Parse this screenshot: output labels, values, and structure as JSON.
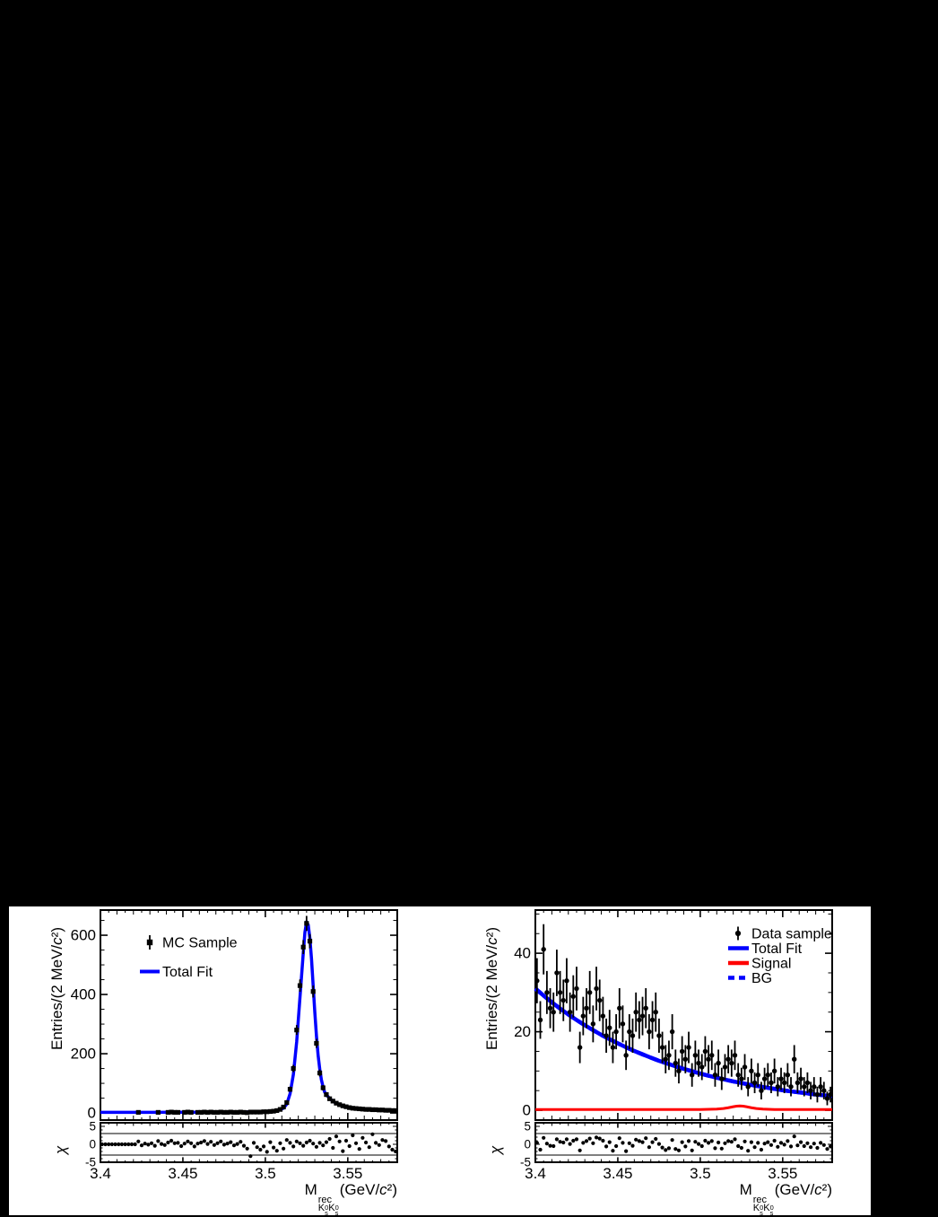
{
  "page": {
    "background": "#000000",
    "canvas_background": "#ffffff"
  },
  "colors": {
    "data_black": "#000000",
    "fit_blue": "#0000ff",
    "signal_red": "#ff0000",
    "frame": "#000000",
    "text": "#000000"
  },
  "chart_data": [
    {
      "id": "mc_sample_fit",
      "type": "histogram_with_fit",
      "ylabel": {
        "pre": "Entries/(2 MeV/",
        "c": "c",
        "post": "²)"
      },
      "xlabel": {
        "m": "M",
        "sup": "rec",
        "k": "K",
        "zero": "0",
        "s": "s",
        "paren": "(GeV/",
        "c": "c",
        "close": "²)"
      },
      "pull_ylabel": "χ",
      "marker": "square",
      "xrange": [
        3.4,
        3.58
      ],
      "yrange": [
        -24,
        685
      ],
      "pull_range": [
        -5,
        6
      ],
      "ytick_major": 200,
      "ytick_minor": 50,
      "xticks": [
        {
          "v": 3.4,
          "label": "3.4"
        },
        {
          "v": 3.45,
          "label": "3.45"
        },
        {
          "v": 3.5,
          "label": "3.5"
        },
        {
          "v": 3.55,
          "label": "3.55"
        }
      ],
      "yticks": [
        {
          "v": 0,
          "label": "0"
        },
        {
          "v": 200,
          "label": "200"
        },
        {
          "v": 400,
          "label": "400"
        },
        {
          "v": 600,
          "label": "600"
        }
      ],
      "pull_ticks": [
        {
          "v": 5,
          "label": "5"
        },
        {
          "v": 0,
          "label": "0"
        },
        {
          "v": -5,
          "label": "-5"
        }
      ],
      "pull_ref_lines": [
        3,
        -3
      ],
      "legend": [
        {
          "label": "MC Sample",
          "swatch": "square-marker-with-errorbar",
          "color_key": "data_black"
        },
        {
          "label": "Total Fit",
          "swatch": "solid-line",
          "color_key": "fit_blue"
        }
      ],
      "bins": {
        "start": 3.401,
        "step": 0.002,
        "values": [
          0,
          0,
          0,
          0,
          0,
          0,
          0,
          0,
          0,
          0,
          0,
          2,
          0,
          0,
          0,
          0,
          0,
          2,
          0,
          0,
          2,
          3,
          2,
          2,
          0,
          2,
          3,
          2,
          0,
          2,
          2,
          3,
          2,
          3,
          2,
          2,
          3,
          2,
          2,
          3,
          2,
          2,
          3,
          2,
          1,
          3,
          3,
          3,
          3,
          4,
          4,
          5,
          6,
          8,
          12,
          20,
          35,
          80,
          150,
          280,
          430,
          560,
          640,
          580,
          410,
          235,
          135,
          85,
          62,
          48,
          40,
          33,
          28,
          24,
          21,
          18,
          16,
          15,
          14,
          13,
          12,
          12,
          11,
          11,
          10,
          10,
          9,
          9,
          8,
          8
        ]
      },
      "curves": [
        {
          "name": "total_fit",
          "legend": "Total Fit",
          "color_key": "fit_blue",
          "style": "solid",
          "width": 3.5,
          "points": [
            [
              3.4,
              2
            ],
            [
              3.43,
              2.2
            ],
            [
              3.45,
              2.4
            ],
            [
              3.47,
              2.7
            ],
            [
              3.485,
              3.2
            ],
            [
              3.495,
              4
            ],
            [
              3.5,
              5
            ],
            [
              3.504,
              6.5
            ],
            [
              3.508,
              9
            ],
            [
              3.511,
              16
            ],
            [
              3.513,
              30
            ],
            [
              3.515,
              65
            ],
            [
              3.517,
              130
            ],
            [
              3.519,
              240
            ],
            [
              3.521,
              390
            ],
            [
              3.523,
              540
            ],
            [
              3.524,
              610
            ],
            [
              3.525,
              645
            ],
            [
              3.526,
              635
            ],
            [
              3.527,
              590
            ],
            [
              3.528,
              520
            ],
            [
              3.529,
              430
            ],
            [
              3.53,
              340
            ],
            [
              3.531,
              260
            ],
            [
              3.532,
              195
            ],
            [
              3.533,
              148
            ],
            [
              3.534,
              112
            ],
            [
              3.535,
              88
            ],
            [
              3.536,
              70
            ],
            [
              3.538,
              55
            ],
            [
              3.54,
              44
            ],
            [
              3.542,
              36
            ],
            [
              3.545,
              28
            ],
            [
              3.548,
              23
            ],
            [
              3.551,
              19
            ],
            [
              3.555,
              16
            ],
            [
              3.56,
              13
            ],
            [
              3.565,
              12
            ],
            [
              3.57,
              11
            ],
            [
              3.575,
              10
            ],
            [
              3.58,
              9
            ]
          ]
        }
      ],
      "pulls": [
        0,
        0,
        0,
        0,
        0,
        0,
        0,
        0,
        0,
        0,
        0,
        0.8,
        -0.3,
        0.2,
        -0.1,
        0.3,
        -0.4,
        0.9,
        0.1,
        -0.2,
        0.5,
        1.0,
        0.3,
        0.4,
        -0.5,
        0.2,
        0.8,
        0.3,
        -0.6,
        0.2,
        0.5,
        0.9,
        0.1,
        0.7,
        -0.2,
        0.3,
        0.8,
        -0.1,
        0.2,
        0.6,
        -0.3,
        0.1,
        0.7,
        -0.4,
        -1.2,
        -3.3,
        0.4,
        -0.8,
        -1.5,
        -0.6,
        -2.1,
        0.6,
        -0.9,
        -1.8,
        0.3,
        -1.2,
        1.2,
        0.4,
        -0.6,
        0.8,
        0.3,
        -0.4,
        0.5,
        1.0,
        0.2,
        -0.7,
        0.4,
        -0.3,
        0.6,
        1.5,
        -1.0,
        2.2,
        0.8,
        -1.9,
        1.0,
        -0.5,
        2.5,
        0.3,
        -1.3,
        1.8,
        0.5,
        -0.8,
        2.8,
        0.4,
        -0.2,
        1.2,
        0.9,
        -0.6,
        -1.5,
        -2.0
      ]
    },
    {
      "id": "data_sample_fit",
      "type": "histogram_with_fit",
      "ylabel": {
        "pre": "Entries/(2 MeV/",
        "c": "c",
        "post": "²)"
      },
      "xlabel": {
        "m": "M",
        "sup": "rec",
        "k": "K",
        "zero": "0",
        "s": "s",
        "paren": "(GeV/",
        "c": "c",
        "close": "²)"
      },
      "pull_ylabel": "χ",
      "marker": "circle",
      "xrange": [
        3.4,
        3.58
      ],
      "yrange": [
        -2.5,
        51
      ],
      "pull_range": [
        -5,
        6
      ],
      "ytick_major": 20,
      "ytick_minor": 5,
      "xticks": [
        {
          "v": 3.4,
          "label": "3.4"
        },
        {
          "v": 3.45,
          "label": "3.45"
        },
        {
          "v": 3.5,
          "label": "3.5"
        },
        {
          "v": 3.55,
          "label": "3.55"
        }
      ],
      "yticks": [
        {
          "v": 0,
          "label": "0"
        },
        {
          "v": 20,
          "label": "20"
        },
        {
          "v": 40,
          "label": "40"
        }
      ],
      "pull_ticks": [
        {
          "v": 5,
          "label": "5"
        },
        {
          "v": 0,
          "label": "0"
        },
        {
          "v": -5,
          "label": "-5"
        }
      ],
      "pull_ref_lines": [
        3,
        -3
      ],
      "legend": [
        {
          "label": "Data sample",
          "swatch": "circle-marker-with-errorbar",
          "color_key": "data_black"
        },
        {
          "label": "Total Fit",
          "swatch": "solid-line",
          "color_key": "fit_blue"
        },
        {
          "label": "Signal",
          "swatch": "solid-line",
          "color_key": "signal_red"
        },
        {
          "label": "BG",
          "swatch": "dashed-line",
          "color_key": "fit_blue"
        }
      ],
      "bins": {
        "start": 3.401,
        "step": 0.002,
        "values": [
          33,
          23,
          41,
          30,
          26,
          25,
          35,
          30,
          28,
          33,
          25,
          29,
          31,
          16,
          24,
          26,
          30,
          22,
          31,
          28,
          24,
          19,
          21,
          16,
          20,
          26,
          22,
          14,
          20,
          19,
          25,
          23,
          24,
          26,
          20,
          23,
          25,
          19,
          16,
          13,
          14,
          20,
          12,
          10,
          15,
          13,
          16,
          9,
          14,
          12,
          11,
          15,
          13,
          14,
          9,
          12,
          8,
          11,
          13,
          12,
          14,
          9,
          8,
          11,
          6,
          10,
          7,
          9,
          5,
          8,
          9,
          7,
          10,
          6,
          8,
          7,
          9,
          6,
          13,
          7,
          8,
          6,
          7,
          5,
          6,
          4,
          6,
          5,
          3,
          4
        ]
      },
      "curves": [
        {
          "name": "bg",
          "legend": "BG",
          "color_key": "fit_blue",
          "style": "dashed",
          "width": 4.5,
          "points": "=total_fit"
        },
        {
          "name": "total_fit",
          "legend": "Total Fit",
          "color_key": "fit_blue",
          "style": "solid",
          "width": 4.5,
          "points": [
            [
              3.4,
              31.0
            ],
            [
              3.405,
              29.2
            ],
            [
              3.41,
              27.5
            ],
            [
              3.415,
              25.9
            ],
            [
              3.42,
              24.4
            ],
            [
              3.425,
              23.0
            ],
            [
              3.43,
              21.65
            ],
            [
              3.435,
              20.4
            ],
            [
              3.44,
              19.2
            ],
            [
              3.445,
              18.1
            ],
            [
              3.45,
              17.05
            ],
            [
              3.455,
              16.05
            ],
            [
              3.46,
              15.1
            ],
            [
              3.465,
              14.25
            ],
            [
              3.47,
              13.4
            ],
            [
              3.475,
              12.6
            ],
            [
              3.48,
              11.9
            ],
            [
              3.485,
              11.2
            ],
            [
              3.49,
              10.55
            ],
            [
              3.495,
              9.95
            ],
            [
              3.5,
              9.35
            ],
            [
              3.505,
              8.8
            ],
            [
              3.51,
              8.3
            ],
            [
              3.515,
              7.8
            ],
            [
              3.52,
              7.35
            ],
            [
              3.525,
              6.95
            ],
            [
              3.53,
              6.5
            ],
            [
              3.535,
              6.15
            ],
            [
              3.54,
              5.8
            ],
            [
              3.545,
              5.45
            ],
            [
              3.55,
              5.1
            ],
            [
              3.555,
              4.8
            ],
            [
              3.56,
              4.55
            ],
            [
              3.565,
              4.3
            ],
            [
              3.57,
              4.0
            ],
            [
              3.575,
              3.8
            ],
            [
              3.58,
              3.6
            ]
          ]
        },
        {
          "name": "signal",
          "legend": "Signal",
          "color_key": "signal_red",
          "style": "solid",
          "width": 3,
          "points": [
            [
              3.4,
              0.2
            ],
            [
              3.5,
              0.2
            ],
            [
              3.51,
              0.3
            ],
            [
              3.514,
              0.45
            ],
            [
              3.517,
              0.65
            ],
            [
              3.52,
              0.9
            ],
            [
              3.522,
              1.05
            ],
            [
              3.524,
              1.1
            ],
            [
              3.526,
              1.05
            ],
            [
              3.528,
              0.9
            ],
            [
              3.531,
              0.65
            ],
            [
              3.534,
              0.45
            ],
            [
              3.538,
              0.3
            ],
            [
              3.545,
              0.2
            ],
            [
              3.58,
              0.2
            ]
          ]
        }
      ],
      "bg_note": "BG curve overlaps the Total Fit curve",
      "pulls": [
        0.4,
        -1.5,
        1.8,
        0.2,
        -0.4,
        -0.5,
        1.4,
        0.7,
        0.5,
        1.4,
        0.1,
        1.0,
        1.4,
        -1.7,
        0.4,
        0.9,
        1.6,
        0.3,
        1.9,
        1.6,
        1.0,
        -0.6,
        0.6,
        -1.8,
        -0.5,
        1.7,
        0.4,
        -1.9,
        0.3,
        -0.4,
        1.3,
        0.9,
        0.6,
        1.7,
        -0.8,
        0.6,
        1.5,
        0.1,
        -0.9,
        -1.6,
        -1.1,
        1.2,
        -1.3,
        -1.7,
        0.6,
        -0.6,
        0.9,
        -1.7,
        0.7,
        0.1,
        -0.5,
        1.0,
        0.4,
        0.9,
        -1.1,
        0.5,
        -1.2,
        0.3,
        0.9,
        0.7,
        1.4,
        -0.5,
        -1.0,
        0.8,
        -1.8,
        0.6,
        -0.8,
        0.4,
        -1.5,
        0.2,
        0.6,
        -0.2,
        1.0,
        -0.7,
        0.4,
        -0.1,
        0.9,
        -0.6,
        2.2,
        -0.3,
        0.6,
        -0.5,
        0.3,
        -0.8,
        0.2,
        -1.0,
        0.4,
        -0.2,
        -1.3,
        -0.6
      ]
    }
  ]
}
